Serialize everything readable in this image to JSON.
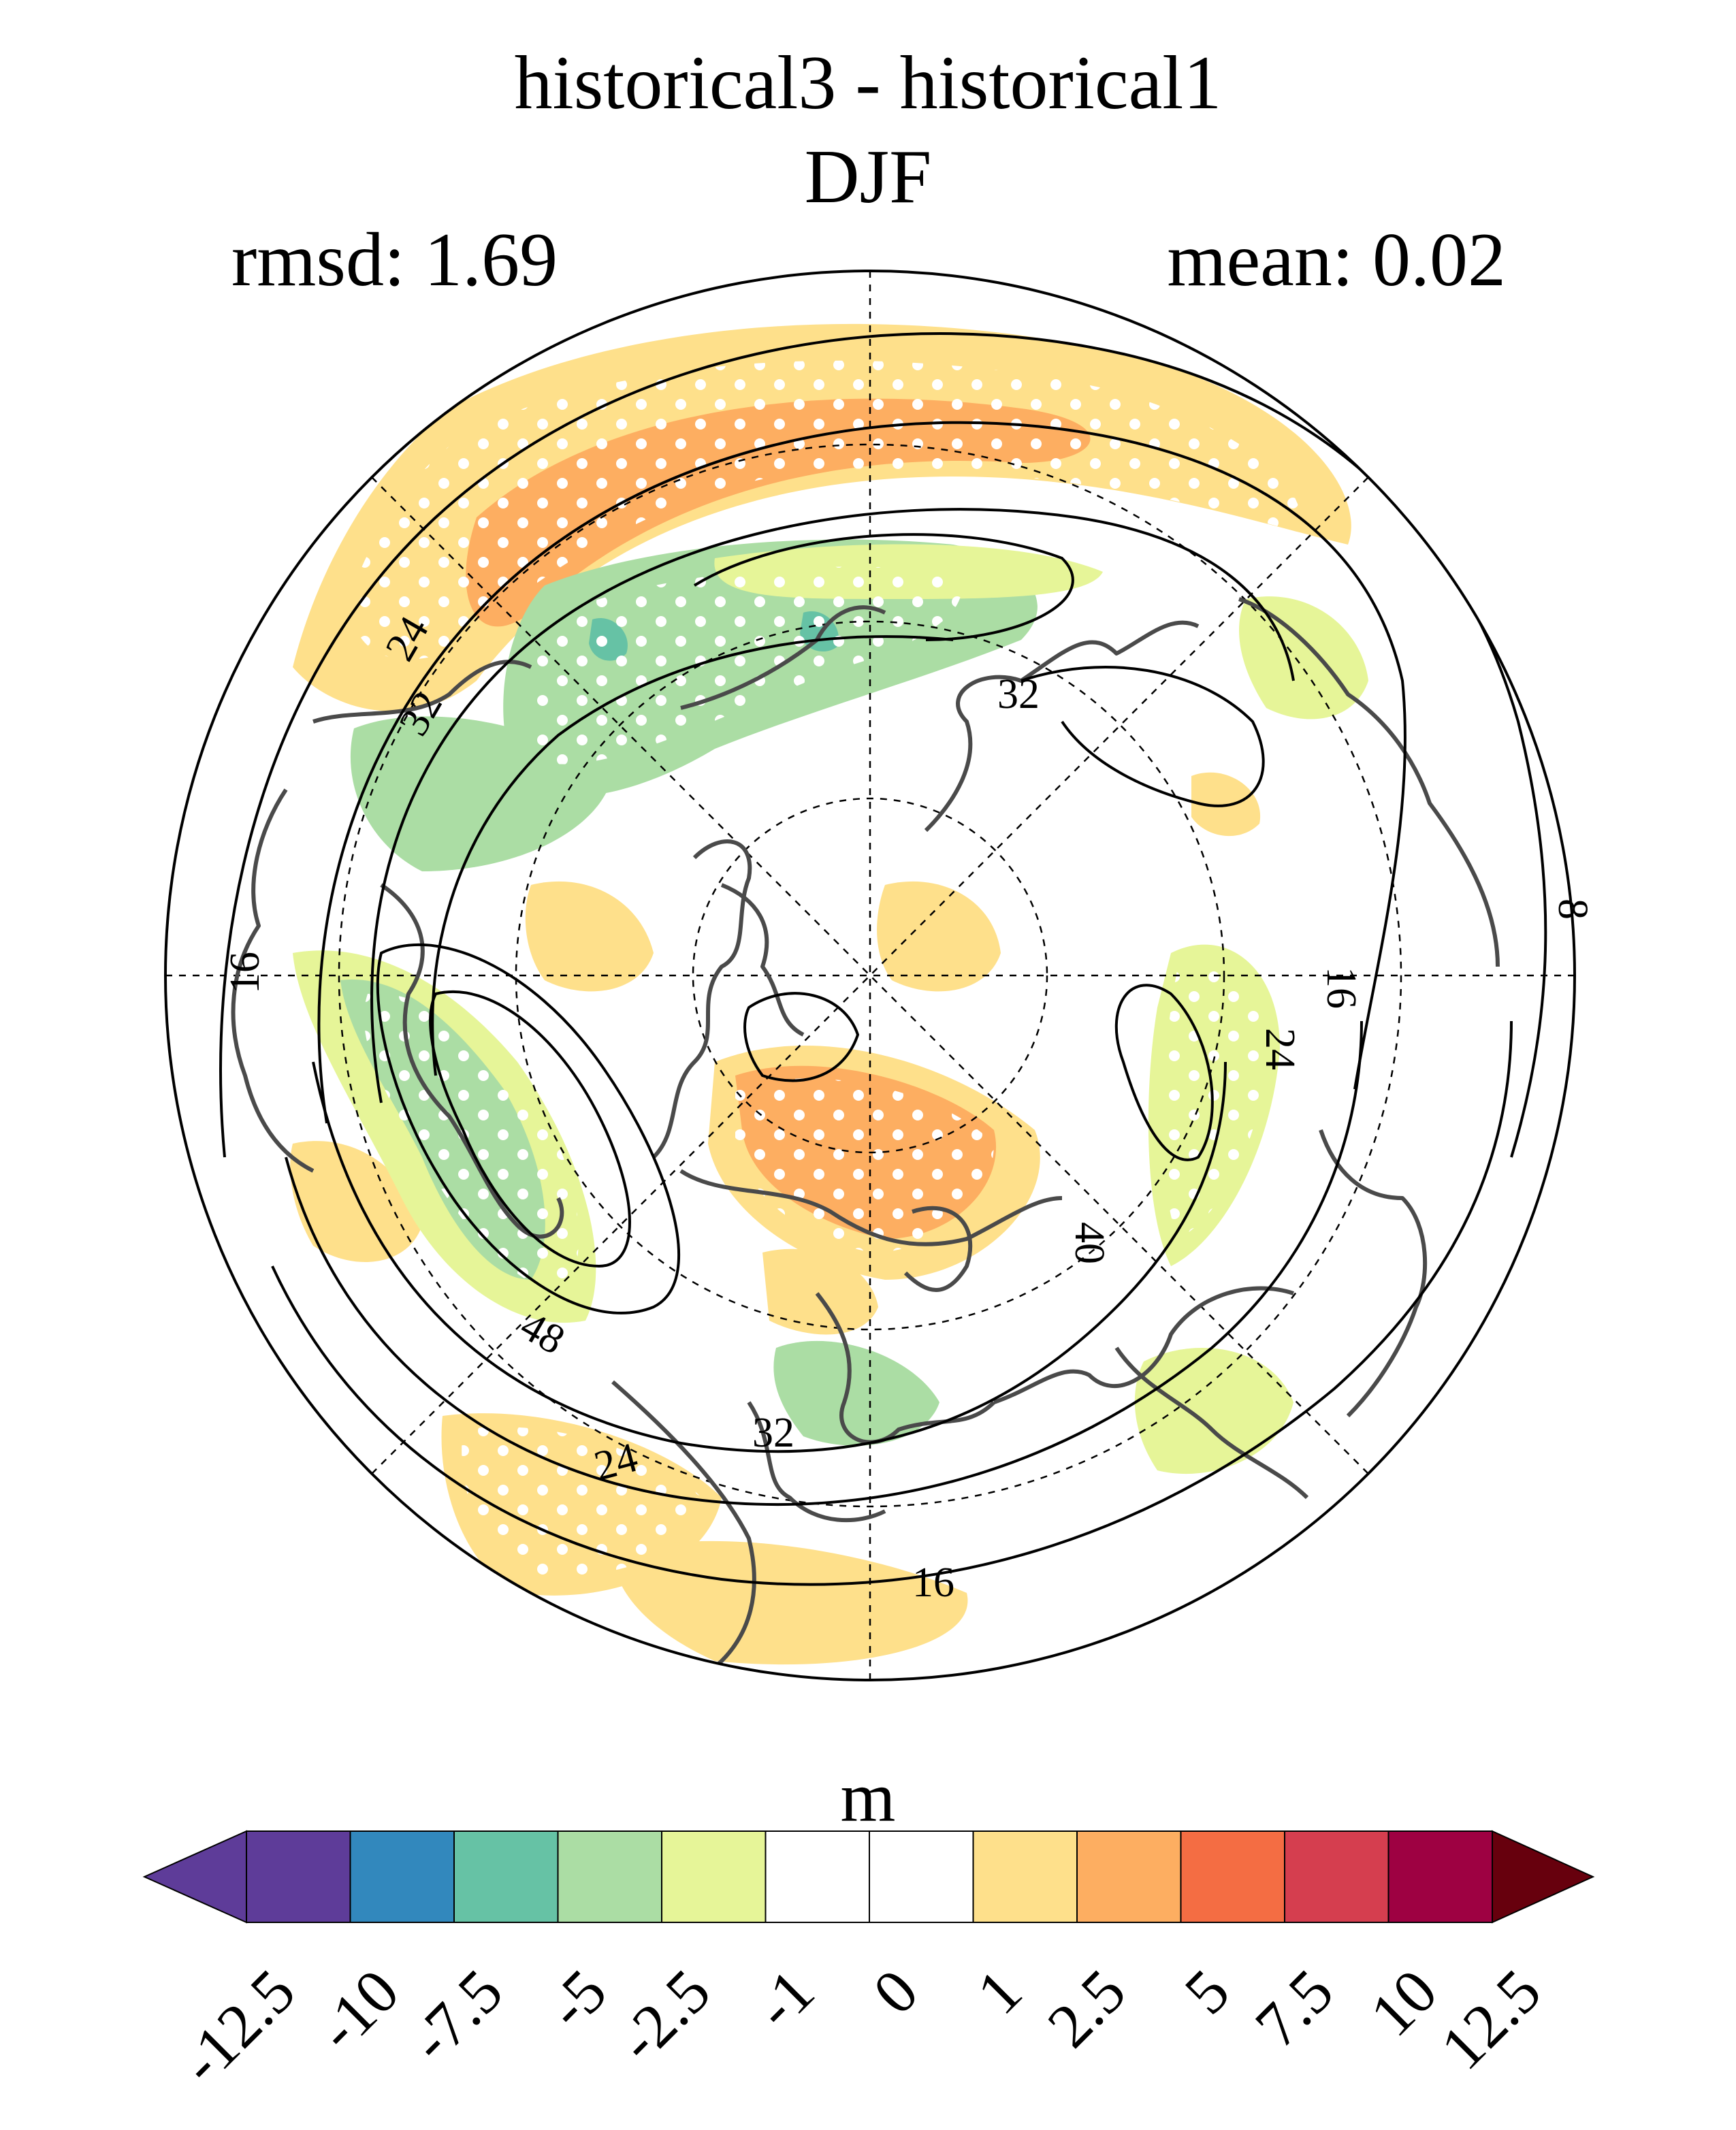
{
  "title": {
    "line1": "historical3 - historical1",
    "line2": "DJF"
  },
  "stats": {
    "rmsd": "rmsd: 1.69",
    "mean": "mean: 0.02"
  },
  "contour_labels": [
    "8",
    "16",
    "16",
    "16",
    "24",
    "24",
    "24",
    "32",
    "32",
    "32",
    "40",
    "48"
  ],
  "colorbar": {
    "unit": "m",
    "tick_labels": [
      "-12.5",
      "-10",
      "-7.5",
      "-5",
      "-2.5",
      "-1",
      "0",
      "1",
      "2.5",
      "5",
      "7.5",
      "10",
      "12.5"
    ],
    "colors": [
      "#5e3c99",
      "#3288bd",
      "#66c2a5",
      "#abdda4",
      "#e6f598",
      "#ffffff",
      "#ffffff",
      "#fee08b",
      "#fdae61",
      "#f46d43",
      "#d53e4f",
      "#9e0142"
    ],
    "under_color": "#5e3c99",
    "over_color": "#67000d"
  }
}
